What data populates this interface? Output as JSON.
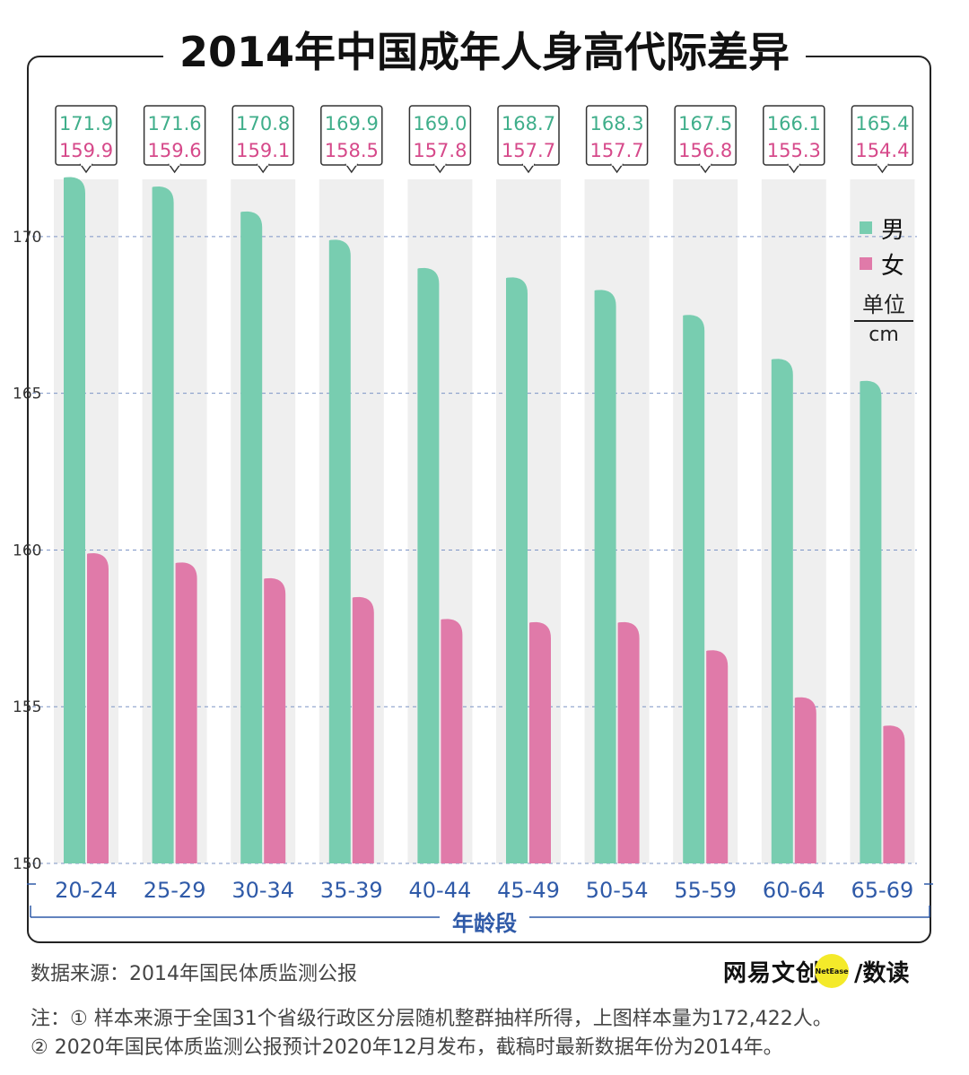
{
  "header": {
    "title": "2014年中国成年人身高代际差异"
  },
  "chart_data": {
    "type": "bar",
    "title": "2014年中国成年人身高代际差异",
    "xlabel": "年龄段",
    "unit_label": "单位",
    "unit": "cm",
    "categories": [
      "20-24",
      "25-29",
      "30-34",
      "35-39",
      "40-44",
      "45-49",
      "50-54",
      "55-59",
      "60-64",
      "65-69"
    ],
    "series": [
      {
        "name": "男",
        "color": "#78cdb0",
        "label_color": "#3fae8a",
        "values": [
          171.9,
          171.6,
          170.8,
          169.9,
          169.0,
          168.7,
          168.3,
          167.5,
          166.1,
          165.4
        ],
        "labels": [
          "171.9",
          "171.6",
          "170.8",
          "169.9",
          "169.0",
          "168.7",
          "168.3",
          "167.5",
          "166.1",
          "165.4"
        ]
      },
      {
        "name": "女",
        "color": "#e07aa9",
        "label_color": "#d6498a",
        "values": [
          159.9,
          159.6,
          159.1,
          158.5,
          157.8,
          157.7,
          157.7,
          156.8,
          155.3,
          154.4
        ],
        "labels": [
          "159.9",
          "159.6",
          "159.1",
          "158.5",
          "157.8",
          "157.7",
          "157.7",
          "156.8",
          "155.3",
          "154.4"
        ]
      }
    ],
    "ylim": [
      150,
      172.4
    ],
    "yticks": [
      150,
      155,
      160,
      165,
      170
    ],
    "grid": true,
    "legend_position": "right"
  },
  "footer": {
    "source": "数据来源：2014年国民体质监测公报",
    "brand_main": "网易文创",
    "brand_dot": "NetEase",
    "brand_sub": "/数读",
    "note1": "注：① 样本来源于全国31个省级行政区分层随机整群抽样所得，上图样本量为172,422人。",
    "note2": "② 2020年国民体质监测公报预计2020年12月发布，截稿时最新数据年份为2014年。"
  }
}
